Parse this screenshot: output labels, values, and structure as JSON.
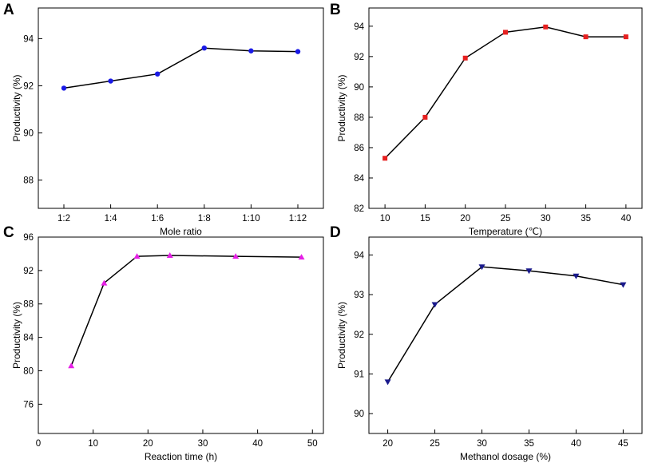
{
  "chart_data": [
    {
      "panel": "A",
      "type": "line",
      "xlabel": "Mole ratio",
      "ylabel": "Productivity (%)",
      "categories": [
        "1:2",
        "1:4",
        "1:6",
        "1:8",
        "1:10",
        "1:12"
      ],
      "values": [
        91.9,
        92.2,
        92.5,
        93.6,
        93.48,
        93.45
      ],
      "ylim": [
        86.8,
        95.3
      ],
      "yticks": [
        88,
        90,
        92,
        94
      ],
      "marker": "circle",
      "marker_color": "#1a1ae6"
    },
    {
      "panel": "B",
      "type": "line",
      "xlabel": "Temperature (℃)",
      "ylabel": "Productivity (%)",
      "x": [
        10,
        15,
        20,
        25,
        30,
        35,
        40
      ],
      "values": [
        85.3,
        88.0,
        91.9,
        93.6,
        93.95,
        93.3,
        93.3
      ],
      "xlim": [
        8,
        42
      ],
      "ylim": [
        82,
        95.2
      ],
      "xticks": [
        10,
        15,
        20,
        25,
        30,
        35,
        40
      ],
      "yticks": [
        82,
        84,
        86,
        88,
        90,
        92,
        94
      ],
      "marker": "square",
      "marker_color": "#e62020"
    },
    {
      "panel": "C",
      "type": "line",
      "xlabel": "Reaction time (h)",
      "ylabel": "Productivity (%)",
      "x": [
        6,
        12,
        18,
        24,
        36,
        48
      ],
      "values": [
        80.6,
        90.5,
        93.7,
        93.8,
        93.7,
        93.6
      ],
      "xlim": [
        0,
        52
      ],
      "ylim": [
        72.5,
        96
      ],
      "xticks": [
        0,
        10,
        20,
        30,
        40,
        50
      ],
      "yticks": [
        76,
        80,
        84,
        88,
        92,
        96
      ],
      "marker": "triangle-up",
      "marker_color": "#e620e6"
    },
    {
      "panel": "D",
      "type": "line",
      "xlabel": "Methanol dosage (%)",
      "ylabel": "Productivity (%)",
      "x": [
        20,
        25,
        30,
        35,
        40,
        45
      ],
      "values": [
        90.8,
        92.75,
        93.7,
        93.6,
        93.47,
        93.25
      ],
      "xlim": [
        18,
        47
      ],
      "ylim": [
        89.5,
        94.45
      ],
      "xticks": [
        20,
        25,
        30,
        35,
        40,
        45
      ],
      "yticks": [
        90,
        91,
        92,
        93,
        94
      ],
      "marker": "triangle-down",
      "marker_color": "#1a1a8c"
    }
  ]
}
